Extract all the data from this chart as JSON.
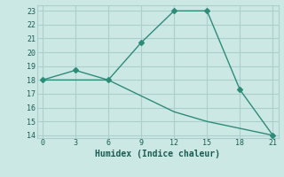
{
  "line1_x": [
    0,
    3,
    6,
    9,
    12,
    15,
    18,
    21
  ],
  "line1_y": [
    18,
    18.7,
    18,
    20.7,
    23,
    23,
    17.3,
    14
  ],
  "line2_x": [
    0,
    6,
    12,
    15,
    21
  ],
  "line2_y": [
    18,
    18,
    15.7,
    15.0,
    14
  ],
  "line_color": "#2e8b7a",
  "bg_color": "#cce8e4",
  "grid_color": "#aacfcc",
  "xlabel": "Humidex (Indice chaleur)",
  "xlim": [
    -0.5,
    21.5
  ],
  "ylim": [
    13.8,
    23.4
  ],
  "xticks": [
    0,
    3,
    6,
    9,
    12,
    15,
    18,
    21
  ],
  "yticks": [
    14,
    15,
    16,
    17,
    18,
    19,
    20,
    21,
    22,
    23
  ],
  "marker": "D",
  "markersize": 3.0,
  "linewidth": 1.0
}
